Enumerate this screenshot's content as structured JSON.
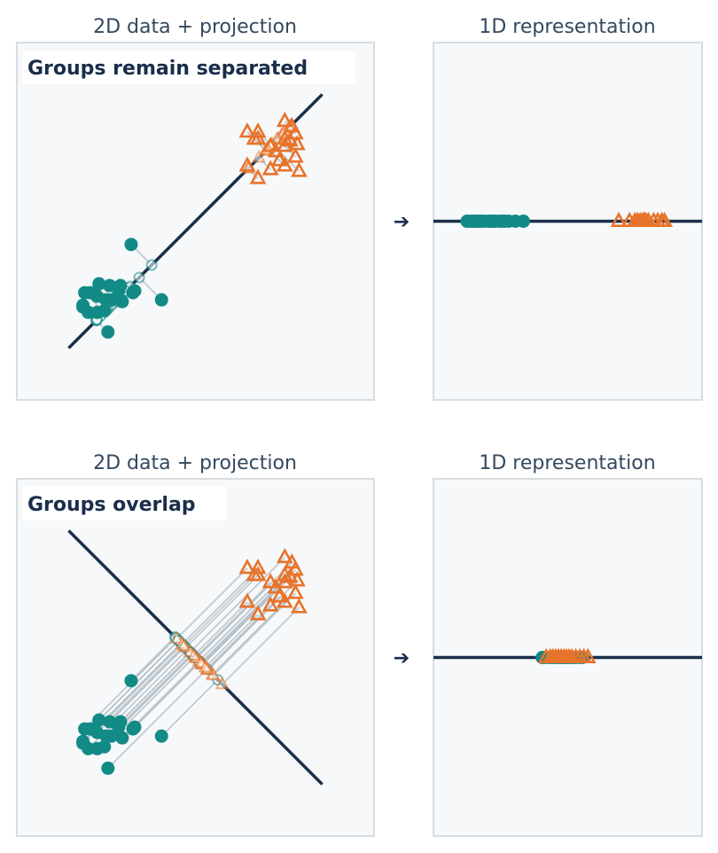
{
  "colors": {
    "panel_bg": "#f6f8fa",
    "panel_border": "#d6dde3",
    "teal": "#128a86",
    "orange": "#e8732a",
    "navy": "#1a2e4a",
    "connector": "#b5c0c8"
  },
  "chart_data": [
    {
      "type": "scatter",
      "title": "2D data + projection",
      "label": "Groups remain separated",
      "xlim": [
        0,
        10
      ],
      "ylim": [
        0,
        10
      ],
      "grid": false,
      "projection_line": [
        [
          1.45,
          1.45
        ],
        [
          8.55,
          8.55
        ]
      ],
      "series": [
        {
          "marker": "circle",
          "color": "#128a86",
          "points": [
            [
              3.2,
              4.35
            ],
            [
              1.85,
              2.6
            ],
            [
              2.6,
              3.2
            ],
            [
              2.25,
              2.9
            ],
            [
              2.95,
              2.75
            ],
            [
              1.9,
              3.0
            ],
            [
              2.45,
              2.5
            ],
            [
              3.25,
              3.0
            ],
            [
              2.55,
              1.9
            ],
            [
              2.85,
              3.05
            ],
            [
              2.25,
              2.45
            ],
            [
              2.0,
              2.45
            ],
            [
              3.3,
              3.05
            ],
            [
              4.05,
              2.8
            ],
            [
              2.9,
              3.2
            ],
            [
              2.65,
              2.8
            ],
            [
              2.3,
              3.25
            ],
            [
              1.85,
              2.65
            ],
            [
              2.5,
              2.8
            ],
            [
              2.05,
              3.0
            ]
          ]
        },
        {
          "marker": "triangle",
          "color": "#e8732a",
          "points": [
            [
              6.45,
              7.5
            ],
            [
              6.75,
              7.3
            ],
            [
              6.75,
              7.5
            ],
            [
              7.1,
              7.1
            ],
            [
              7.1,
              6.45
            ],
            [
              7.5,
              7.3
            ],
            [
              7.5,
              7.8
            ],
            [
              7.5,
              7.1
            ],
            [
              7.5,
              6.55
            ],
            [
              7.7,
              7.65
            ],
            [
              7.8,
              6.8
            ],
            [
              7.9,
              6.4
            ],
            [
              7.8,
              7.45
            ],
            [
              7.85,
              7.15
            ],
            [
              7.65,
              7.25
            ],
            [
              7.25,
              6.95
            ],
            [
              7.35,
              6.7
            ],
            [
              6.75,
              6.2
            ],
            [
              6.45,
              6.55
            ],
            [
              6.65,
              7.3
            ]
          ]
        }
      ]
    },
    {
      "type": "scatter",
      "title": "1D representation",
      "series": [
        {
          "marker": "circle",
          "color": "#128a86",
          "values": [
            1.25,
            1.35,
            1.45,
            1.55,
            1.6,
            1.7,
            1.8,
            1.9,
            2.05,
            2.15,
            2.25,
            2.3,
            2.45,
            2.55,
            2.65,
            2.8,
            3.05,
            3.35
          ]
        },
        {
          "marker": "triangle",
          "color": "#e8732a",
          "values": [
            6.9,
            7.3,
            7.5,
            7.6,
            7.7,
            7.8,
            7.85,
            7.9,
            8.0,
            8.2,
            8.35,
            8.5,
            8.6
          ]
        }
      ]
    },
    {
      "type": "scatter",
      "title": "2D data + projection",
      "label": "Groups overlap",
      "xlim": [
        0,
        10
      ],
      "ylim": [
        0,
        10
      ],
      "grid": false,
      "projection_line": [
        [
          1.45,
          8.55
        ],
        [
          8.55,
          1.45
        ]
      ],
      "series": [
        {
          "marker": "circle",
          "color": "#128a86",
          "points": [
            [
              3.2,
              4.35
            ],
            [
              1.85,
              2.6
            ],
            [
              2.6,
              3.2
            ],
            [
              2.25,
              2.9
            ],
            [
              2.95,
              2.75
            ],
            [
              1.9,
              3.0
            ],
            [
              2.45,
              2.5
            ],
            [
              3.25,
              3.0
            ],
            [
              2.55,
              1.9
            ],
            [
              2.85,
              3.05
            ],
            [
              2.25,
              2.45
            ],
            [
              2.0,
              2.45
            ],
            [
              3.3,
              3.05
            ],
            [
              4.05,
              2.8
            ],
            [
              2.9,
              3.2
            ],
            [
              2.65,
              2.8
            ],
            [
              2.3,
              3.25
            ],
            [
              1.85,
              2.65
            ],
            [
              2.5,
              2.8
            ],
            [
              2.05,
              3.0
            ]
          ]
        },
        {
          "marker": "triangle",
          "color": "#e8732a",
          "points": [
            [
              6.45,
              7.5
            ],
            [
              6.75,
              7.3
            ],
            [
              6.75,
              7.5
            ],
            [
              7.1,
              7.1
            ],
            [
              7.1,
              6.45
            ],
            [
              7.5,
              7.3
            ],
            [
              7.5,
              7.8
            ],
            [
              7.5,
              7.1
            ],
            [
              7.5,
              6.55
            ],
            [
              7.7,
              7.65
            ],
            [
              7.8,
              6.8
            ],
            [
              7.9,
              6.4
            ],
            [
              7.8,
              7.45
            ],
            [
              7.85,
              7.15
            ],
            [
              7.65,
              7.25
            ],
            [
              7.25,
              6.95
            ],
            [
              7.35,
              6.7
            ],
            [
              6.75,
              6.2
            ],
            [
              6.45,
              6.55
            ],
            [
              6.65,
              7.3
            ]
          ]
        }
      ]
    },
    {
      "type": "scatter",
      "title": "1D representation",
      "series": [
        {
          "marker": "circle",
          "color": "#128a86",
          "values": [
            4.05,
            4.15,
            4.3,
            4.4,
            4.5,
            4.6,
            4.7,
            4.8,
            4.9,
            5.0,
            5.1,
            5.2,
            5.3,
            5.45,
            5.55
          ]
        },
        {
          "marker": "triangle",
          "color": "#e8732a",
          "values": [
            4.2,
            4.35,
            4.45,
            4.55,
            4.65,
            4.75,
            4.85,
            4.95,
            5.05,
            5.15,
            5.3,
            5.45,
            5.6,
            5.75
          ]
        }
      ]
    }
  ],
  "arrows": [
    "➔",
    "➔"
  ]
}
